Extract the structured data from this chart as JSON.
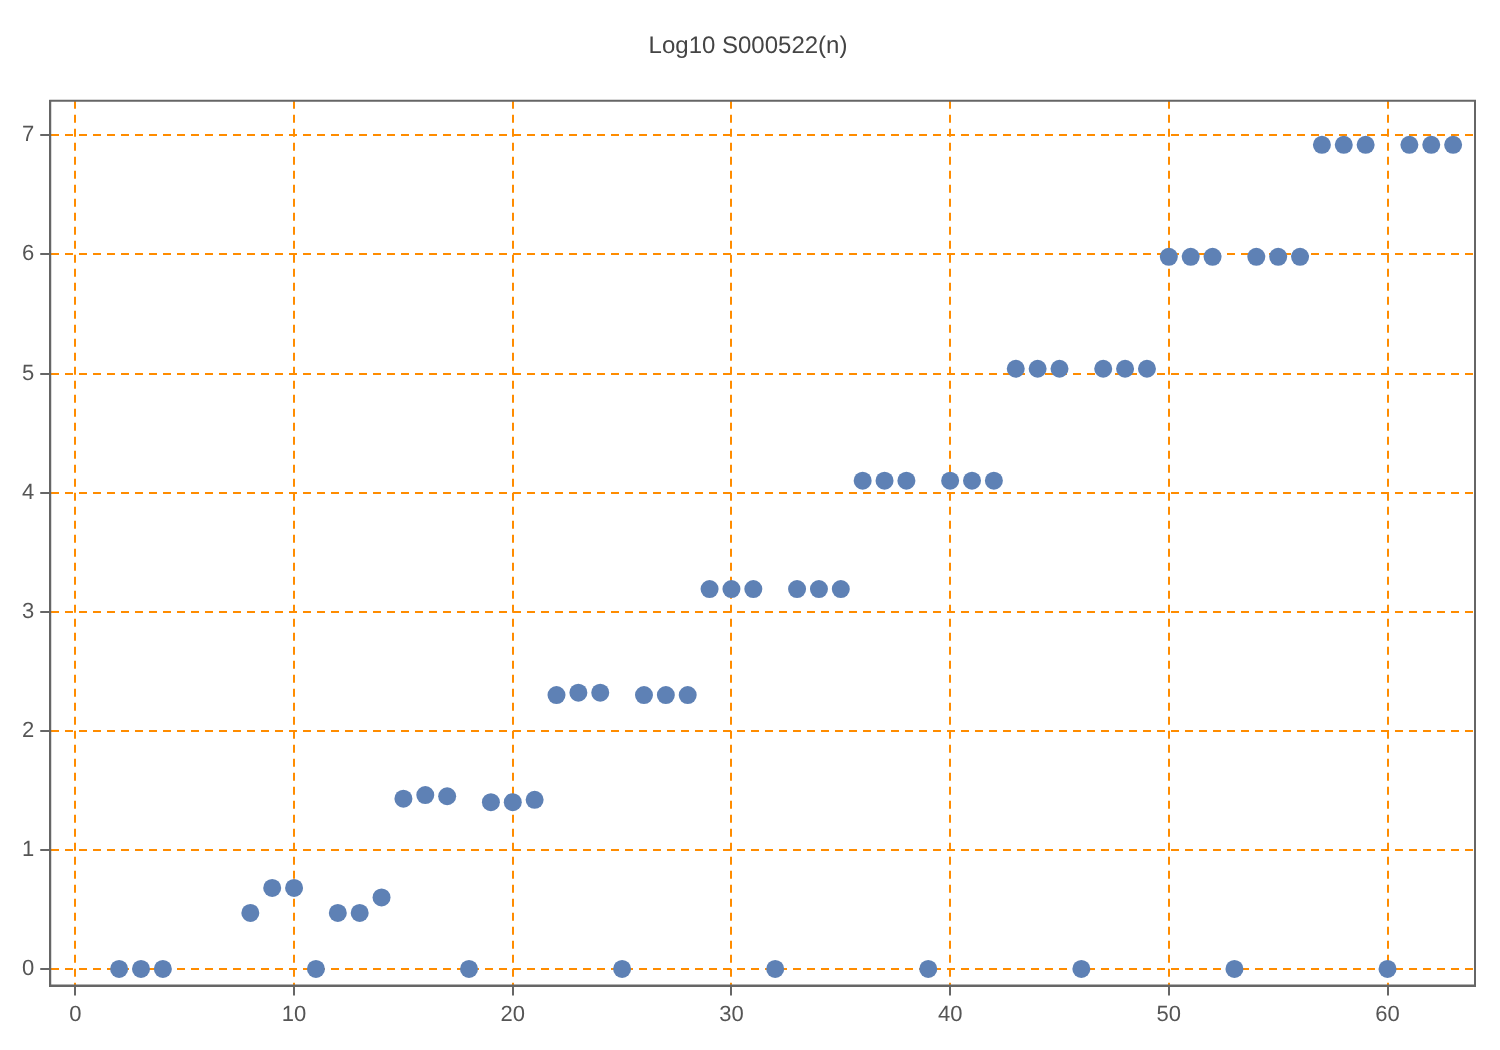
{
  "chart_data": {
    "type": "scatter",
    "title": "Log10 S000522(n)",
    "x": [
      2,
      3,
      4,
      8,
      9,
      10,
      11,
      12,
      13,
      14,
      15,
      16,
      17,
      18,
      19,
      20,
      21,
      22,
      23,
      24,
      25,
      26,
      27,
      28,
      29,
      30,
      31,
      32,
      33,
      34,
      35,
      36,
      37,
      38,
      39,
      40,
      41,
      42,
      43,
      44,
      45,
      46,
      47,
      48,
      49,
      50,
      51,
      52,
      53,
      54,
      55,
      56,
      57,
      58,
      59,
      60,
      61,
      62,
      63
    ],
    "series": [
      {
        "color": "#5e81b5",
        "values": [
          0,
          0,
          0,
          0.47,
          0.68,
          0.68,
          0,
          0.47,
          0.47,
          0.6,
          1.43,
          1.46,
          1.45,
          0,
          1.4,
          1.4,
          1.42,
          2.3,
          2.32,
          2.32,
          0,
          2.3,
          2.3,
          2.3,
          3.19,
          3.19,
          3.19,
          0,
          3.19,
          3.19,
          3.19,
          4.1,
          4.1,
          4.1,
          0,
          4.1,
          4.1,
          4.1,
          5.04,
          5.04,
          5.04,
          0,
          5.04,
          5.04,
          5.04,
          5.98,
          5.98,
          5.98,
          0,
          5.98,
          5.98,
          5.98,
          6.92,
          6.92,
          6.92,
          0,
          6.92,
          6.92,
          6.92
        ]
      }
    ],
    "xlim": [
      -1.15,
      64
    ],
    "ylim": [
      -0.14,
      7.29
    ],
    "xticks": [
      0,
      10,
      20,
      30,
      40,
      50,
      60
    ],
    "yticks": [
      0,
      1,
      2,
      3,
      4,
      5,
      6,
      7
    ],
    "grid": true,
    "legend": false,
    "marker": "circle"
  }
}
